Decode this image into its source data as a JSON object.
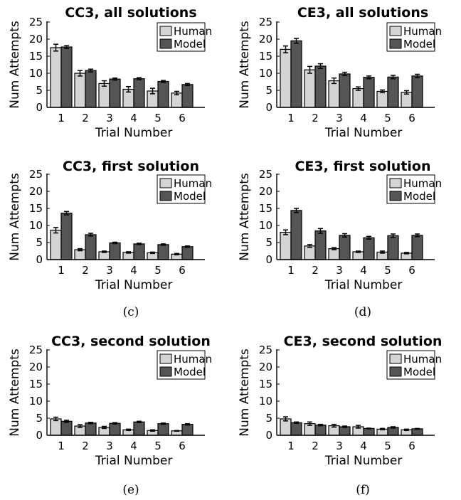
{
  "colors": {
    "human": "#d4d4d4",
    "model": "#555555",
    "axis": "#000000",
    "errorbar": "#000000"
  },
  "legend": {
    "human": "Human",
    "model": "Model",
    "placement": "top-right"
  },
  "chart_data": [
    {
      "type": "bar",
      "caption": "",
      "title": "CC3, all solutions",
      "xlabel": "Trial Number",
      "ylabel": "Num Attempts",
      "categories": [
        "1",
        "2",
        "3",
        "4",
        "5",
        "6"
      ],
      "ylim": [
        0,
        25
      ],
      "yticks": [
        "0",
        "5",
        "10",
        "15",
        "20",
        "25"
      ],
      "series": [
        {
          "name": "Human",
          "values": [
            17.5,
            10,
            7,
            5.3,
            4.8,
            4.2
          ],
          "errors": [
            1.0,
            0.8,
            0.8,
            0.8,
            0.8,
            0.5
          ]
        },
        {
          "name": "Model",
          "values": [
            17.7,
            10.8,
            8.3,
            8.4,
            7.6,
            6.7
          ],
          "errors": [
            0.4,
            0.4,
            0.3,
            0.3,
            0.3,
            0.3
          ]
        }
      ]
    },
    {
      "type": "bar",
      "caption": "",
      "title": "CE3, all solutions",
      "xlabel": "Trial Number",
      "ylabel": "Num Attempts",
      "categories": [
        "1",
        "2",
        "3",
        "4",
        "5",
        "6"
      ],
      "ylim": [
        0,
        25
      ],
      "yticks": [
        "0",
        "5",
        "10",
        "15",
        "20",
        "25"
      ],
      "series": [
        {
          "name": "Human",
          "values": [
            17,
            11,
            7.8,
            5.5,
            4.7,
            4.4
          ],
          "errors": [
            1.0,
            1.0,
            0.8,
            0.5,
            0.4,
            0.5
          ]
        },
        {
          "name": "Model",
          "values": [
            19.5,
            12.1,
            9.8,
            8.8,
            8.9,
            9.2
          ],
          "errors": [
            0.7,
            0.7,
            0.5,
            0.4,
            0.5,
            0.5
          ]
        }
      ]
    },
    {
      "type": "bar",
      "caption": "(c)",
      "title": "CC3, first solution",
      "xlabel": "Trial Number",
      "ylabel": "Num Attempts",
      "categories": [
        "1",
        "2",
        "3",
        "4",
        "5",
        "6"
      ],
      "ylim": [
        0,
        25
      ],
      "yticks": [
        "0",
        "5",
        "10",
        "15",
        "20",
        "25"
      ],
      "series": [
        {
          "name": "Human",
          "values": [
            8.6,
            2.9,
            2.3,
            2.1,
            2.0,
            1.6
          ],
          "errors": [
            0.8,
            0.3,
            0.2,
            0.2,
            0.2,
            0.2
          ]
        },
        {
          "name": "Model",
          "values": [
            13.6,
            7.3,
            4.9,
            4.6,
            4.4,
            3.8
          ],
          "errors": [
            0.5,
            0.4,
            0.2,
            0.2,
            0.2,
            0.2
          ]
        }
      ]
    },
    {
      "type": "bar",
      "caption": "(d)",
      "title": "CE3, first solution",
      "xlabel": "Trial Number",
      "ylabel": "Num Attempts",
      "categories": [
        "1",
        "2",
        "3",
        "4",
        "5",
        "6"
      ],
      "ylim": [
        0,
        25
      ],
      "yticks": [
        "0",
        "5",
        "10",
        "15",
        "20",
        "25"
      ],
      "series": [
        {
          "name": "Human",
          "values": [
            8.0,
            4.0,
            3.2,
            2.3,
            2.2,
            1.9
          ],
          "errors": [
            0.7,
            0.4,
            0.3,
            0.2,
            0.3,
            0.2
          ]
        },
        {
          "name": "Model",
          "values": [
            14.4,
            8.4,
            7.1,
            6.4,
            7.0,
            7.1
          ],
          "errors": [
            0.6,
            0.7,
            0.5,
            0.4,
            0.5,
            0.4
          ]
        }
      ]
    },
    {
      "type": "bar",
      "caption": "(e)",
      "title": "CC3, second solution",
      "xlabel": "Trial Number",
      "ylabel": "Num Attempts",
      "categories": [
        "1",
        "2",
        "3",
        "4",
        "5",
        "6"
      ],
      "ylim": [
        0,
        25
      ],
      "yticks": [
        "0",
        "5",
        "10",
        "15",
        "20",
        "25"
      ],
      "series": [
        {
          "name": "Human",
          "values": [
            4.8,
            2.7,
            2.3,
            1.6,
            1.4,
            1.3
          ],
          "errors": [
            0.5,
            0.4,
            0.3,
            0.2,
            0.2,
            0.1
          ]
        },
        {
          "name": "Model",
          "values": [
            4.1,
            3.6,
            3.5,
            3.9,
            3.4,
            3.2
          ],
          "errors": [
            0.3,
            0.2,
            0.2,
            0.2,
            0.2,
            0.2
          ]
        }
      ]
    },
    {
      "type": "bar",
      "caption": "(f)",
      "title": "CE3, second solution",
      "xlabel": "Trial Number",
      "ylabel": "Num Attempts",
      "categories": [
        "1",
        "2",
        "3",
        "4",
        "5",
        "6"
      ],
      "ylim": [
        0,
        25
      ],
      "yticks": [
        "0",
        "5",
        "10",
        "15",
        "20",
        "25"
      ],
      "series": [
        {
          "name": "Human",
          "values": [
            4.8,
            3.4,
            2.8,
            2.5,
            1.8,
            1.6
          ],
          "errors": [
            0.6,
            0.5,
            0.4,
            0.4,
            0.2,
            0.2
          ]
        },
        {
          "name": "Model",
          "values": [
            3.7,
            3.0,
            2.5,
            2.0,
            2.3,
            1.9
          ],
          "errors": [
            0.2,
            0.2,
            0.2,
            0.1,
            0.2,
            0.1
          ]
        }
      ]
    }
  ]
}
